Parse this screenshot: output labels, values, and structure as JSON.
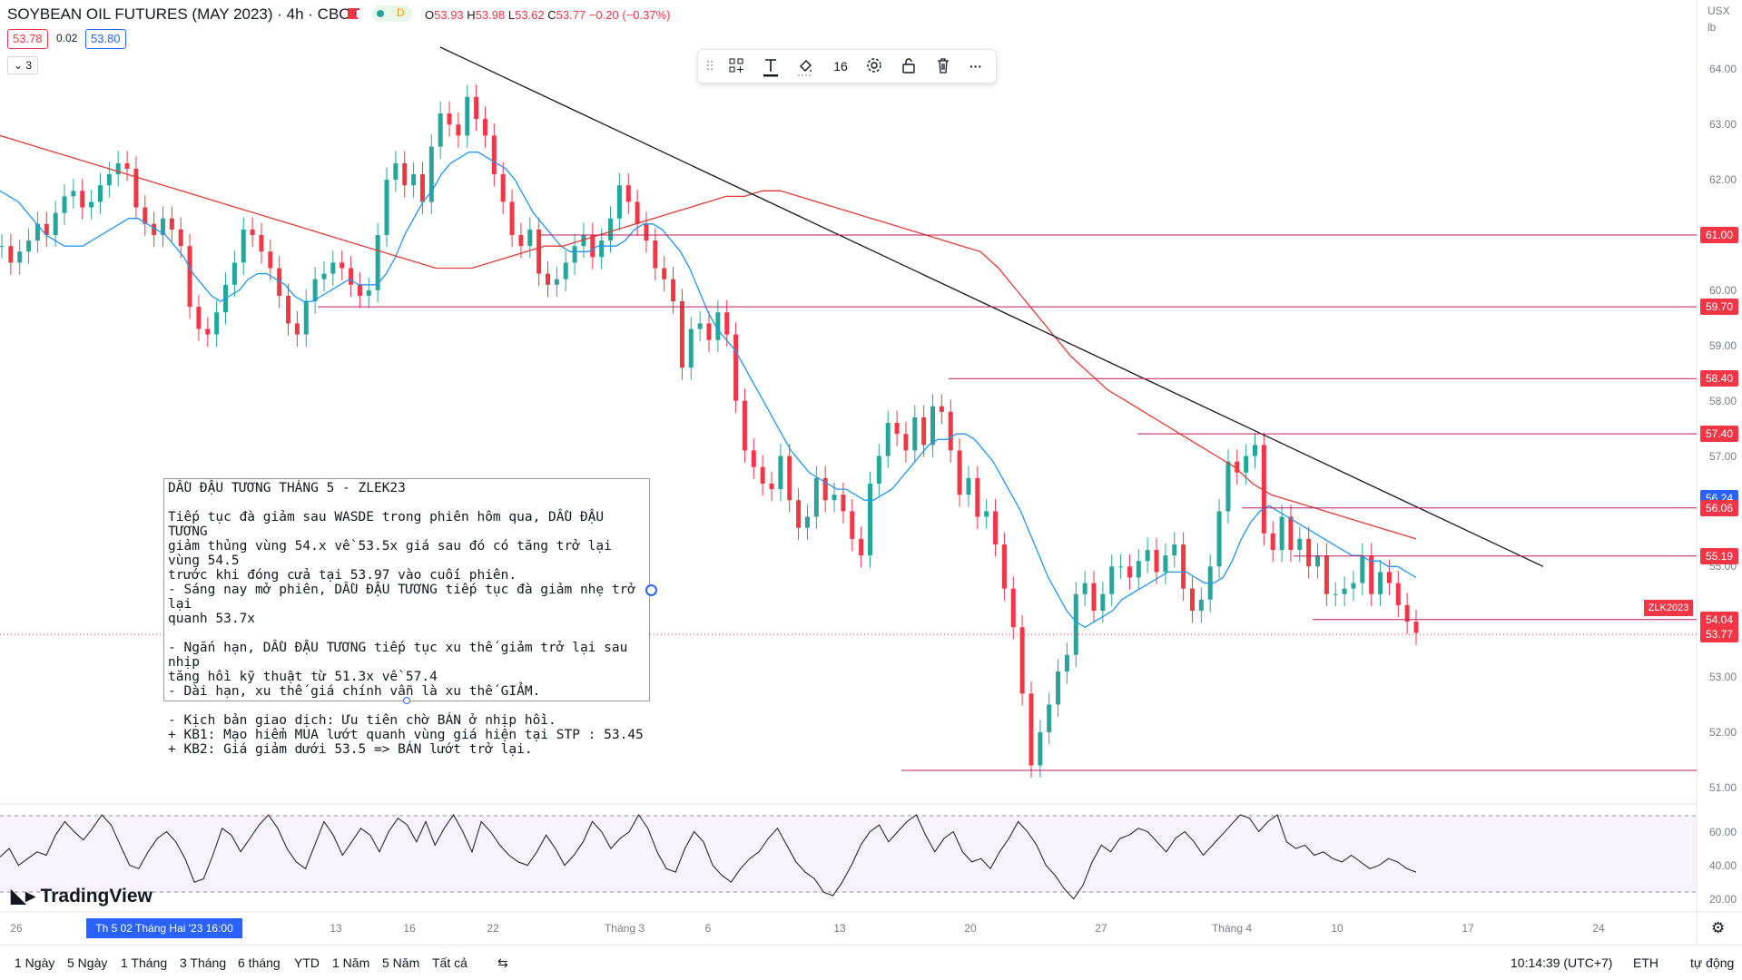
{
  "header": {
    "title": "SOYBEAN OIL FUTURES (MAY 2023) · 4h · CBOT",
    "market_status_badge": "D",
    "ohlc": [
      {
        "key": "O",
        "value": "53.93"
      },
      {
        "key": "H",
        "value": "53.98"
      },
      {
        "key": "L",
        "value": "53.62"
      },
      {
        "key": "C",
        "value": "53.77"
      },
      {
        "key": "",
        "value": "−0.20 (−0.37%)"
      }
    ],
    "sell_price": "53.78",
    "spread": "0.02",
    "buy_price": "53.80",
    "indicators_count": "3"
  },
  "toolbar": {
    "font_size": "16",
    "icons": [
      "drag-handle-icon",
      "templates-icon",
      "text-color-icon",
      "fill-color-icon",
      "settings-icon",
      "lock-icon",
      "trash-icon",
      "more-icon"
    ]
  },
  "price_axis": {
    "currency": "USX",
    "unit": "lb",
    "ticks": [
      "64.00",
      "63.00",
      "62.00",
      "61.00",
      "60.00",
      "59.00",
      "58.00",
      "57.00",
      "56.00",
      "55.00",
      "54.00",
      "53.00",
      "52.00",
      "51.00"
    ],
    "level_tags": [
      {
        "value": "61.00",
        "color": "#f23645"
      },
      {
        "value": "59.70",
        "color": "#f23645"
      },
      {
        "value": "58.40",
        "color": "#f23645"
      },
      {
        "value": "57.40",
        "color": "#f23645"
      },
      {
        "value": "56.24",
        "color": "#2962ff"
      },
      {
        "value": "56.06",
        "color": "#f23645"
      },
      {
        "value": "55.19",
        "color": "#f23645"
      },
      {
        "value": "54.04",
        "color": "#f23645"
      },
      {
        "value": "53.77",
        "color": "#f23645"
      }
    ],
    "symbol_tag": "ZLK2023"
  },
  "rsi_axis": {
    "ticks": [
      "60.00",
      "40.00",
      "20.00"
    ]
  },
  "note": {
    "lines": [
      "DẦU ĐẬU TƯƠNG THÁNG 5 - ZLEK23",
      "",
      "Tiếp tục đà giảm sau WASDE trong phiên hôm qua, DẦU ĐẬU TƯƠNG",
      "giảm thủng vùng 54.x về 53.5x giá sau đó có tăng trở lại vùng 54.5",
      "trước khi đóng cửa tại 53.97 vào cuối phiên.",
      "- Sáng nay mở phiên, DẦU ĐẬU TƯƠNG tiếp tục đà giảm nhẹ trở lại",
      "quanh 53.7x",
      "",
      "- Ngắn hạn, DẦU ĐẬU TƯƠNG tiếp tục xu thế giảm trở lại sau nhịp",
      "tăng hồi kỹ thuật từ 51.3x về 57.4",
      "- Dài hạn, xu thế giá chính vẫn là xu thế GIẢM.",
      "",
      "- Kịch bản giao dịch: Ưu tiên chờ BÁN ở nhịp hồi.",
      "+ KB1: Mạo hiểm MUA lướt quanh vùng giá hiện tại STP : 53.45",
      "+ KB2: Giá giảm dưới 53.5 => BÁN lướt trở lại."
    ]
  },
  "time_axis": {
    "labels": [
      "26",
      "13",
      "16",
      "22",
      "Tháng 3",
      "6",
      "13",
      "20",
      "27",
      "Tháng 4",
      "10",
      "17",
      "24"
    ],
    "highlight": "Th 5 02 Tháng Hai '23   16:00"
  },
  "brand": "TradingView",
  "bottom_bar": {
    "ranges": [
      "1 Ngày",
      "5 Ngày",
      "1 Tháng",
      "3 Tháng",
      "6 tháng",
      "YTD",
      "1 Năm",
      "5 Năm",
      "Tất cả"
    ],
    "clock": "10:14:39 (UTC+7)",
    "session": "ETH",
    "scale_mode": "tự động"
  },
  "chart_data": {
    "type": "candlestick",
    "title": "SOYBEAN OIL FUTURES (MAY 2023) · 4h · CBOT",
    "ylim": [
      50.8,
      64.4
    ],
    "closes": [
      60.8,
      60.5,
      60.7,
      60.9,
      61.2,
      61.0,
      61.4,
      61.7,
      61.8,
      61.5,
      61.6,
      61.9,
      62.1,
      62.3,
      62.2,
      61.5,
      61.2,
      61.0,
      61.3,
      61.1,
      60.8,
      59.7,
      59.3,
      59.2,
      59.6,
      60.1,
      60.5,
      61.1,
      61.0,
      60.7,
      60.4,
      59.9,
      59.4,
      59.2,
      59.8,
      60.2,
      60.3,
      60.5,
      60.4,
      60.1,
      59.9,
      60.0,
      61.0,
      62.0,
      62.3,
      61.9,
      62.1,
      61.6,
      62.6,
      63.2,
      63.0,
      62.8,
      63.5,
      63.1,
      62.8,
      62.1,
      61.6,
      61.0,
      60.8,
      61.1,
      60.3,
      60.1,
      60.2,
      60.5,
      60.8,
      61.0,
      60.6,
      60.9,
      61.3,
      61.9,
      61.6,
      61.2,
      60.9,
      60.4,
      60.2,
      59.8,
      58.6,
      59.3,
      59.4,
      59.1,
      59.6,
      59.2,
      58.0,
      57.1,
      56.8,
      56.5,
      56.4,
      57.0,
      56.2,
      55.7,
      55.9,
      56.6,
      56.2,
      56.3,
      56.0,
      55.5,
      55.2,
      56.5,
      57.0,
      57.6,
      57.4,
      57.1,
      57.7,
      57.2,
      57.9,
      57.8,
      57.1,
      56.3,
      56.6,
      55.9,
      56.0,
      55.4,
      54.6,
      53.9,
      52.7,
      51.4,
      52.0,
      52.5,
      53.1,
      53.4,
      54.5,
      54.7,
      54.2,
      54.5,
      55.0,
      55.0,
      54.8,
      55.1,
      55.3,
      54.9,
      55.2,
      55.4,
      54.6,
      54.2,
      54.4,
      55.0,
      56.0,
      56.9,
      56.7,
      57.0,
      57.2,
      55.6,
      55.3,
      55.9,
      55.3,
      55.5,
      55.0,
      55.2,
      54.5,
      54.5,
      54.6,
      54.7,
      55.2,
      54.5,
      54.9,
      54.7,
      54.3,
      54.0,
      53.8
    ],
    "ema_fast": [
      61.8,
      61.7,
      61.6,
      61.4,
      61.2,
      61.0,
      60.9,
      60.8,
      60.8,
      60.8,
      60.9,
      61.0,
      61.1,
      61.2,
      61.3,
      61.3,
      61.2,
      61.1,
      61.0,
      60.8,
      60.6,
      60.3,
      60.1,
      59.9,
      59.8,
      59.9,
      60.0,
      60.2,
      60.3,
      60.3,
      60.2,
      60.1,
      59.9,
      59.8,
      59.8,
      59.9,
      60.0,
      60.1,
      60.2,
      60.1,
      60.1,
      60.1,
      60.3,
      60.6,
      61.0,
      61.3,
      61.6,
      61.8,
      62.1,
      62.3,
      62.4,
      62.5,
      62.5,
      62.4,
      62.3,
      62.2,
      62.0,
      61.7,
      61.4,
      61.2,
      61.0,
      60.8,
      60.7,
      60.7,
      60.7,
      60.8,
      60.8,
      60.8,
      60.9,
      61.1,
      61.2,
      61.2,
      61.1,
      60.9,
      60.7,
      60.4,
      60.0,
      59.6,
      59.3,
      59.1,
      58.9,
      58.6,
      58.3,
      58.0,
      57.7,
      57.4,
      57.1,
      56.9,
      56.7,
      56.6,
      56.5,
      56.4,
      56.4,
      56.3,
      56.2,
      56.2,
      56.3,
      56.4,
      56.6,
      56.8,
      57.0,
      57.2,
      57.3,
      57.3,
      57.4,
      57.4,
      57.3,
      57.1,
      56.9,
      56.6,
      56.3,
      56.0,
      55.6,
      55.2,
      54.8,
      54.5,
      54.2,
      54.0,
      53.9,
      54.0,
      54.1,
      54.2,
      54.4,
      54.5,
      54.6,
      54.7,
      54.8,
      54.9,
      54.9,
      54.9,
      54.8,
      54.7,
      54.7,
      54.8,
      55.1,
      55.5,
      55.8,
      56.0,
      56.1,
      56.0,
      55.9,
      55.8,
      55.7,
      55.6,
      55.5,
      55.4,
      55.3,
      55.2,
      55.2,
      55.1,
      55.1,
      55.0,
      55.0,
      54.9,
      54.8
    ],
    "ema_slow": [
      62.8,
      62.7,
      62.6,
      62.5,
      62.4,
      62.3,
      62.2,
      62.1,
      62.0,
      61.9,
      61.8,
      61.7,
      61.6,
      61.5,
      61.4,
      61.3,
      61.2,
      61.1,
      61.0,
      60.9,
      60.8,
      60.7,
      60.6,
      60.5,
      60.4,
      60.4,
      60.4,
      60.5,
      60.6,
      60.7,
      60.8,
      60.8,
      60.9,
      61.0,
      61.1,
      61.2,
      61.3,
      61.4,
      61.5,
      61.6,
      61.7,
      61.7,
      61.8,
      61.8,
      61.7,
      61.6,
      61.5,
      61.4,
      61.3,
      61.2,
      61.1,
      61.0,
      60.9,
      60.8,
      60.7,
      60.4,
      60.0,
      59.6,
      59.2,
      58.8,
      58.5,
      58.2,
      58.0,
      57.8,
      57.6,
      57.4,
      57.2,
      57.0,
      56.8,
      56.5,
      56.3,
      56.2,
      56.1,
      56.0,
      55.9,
      55.8,
      55.7,
      55.6,
      55.5
    ],
    "trendline": [
      {
        "x": 0,
        "y": 64.4
      },
      {
        "x": 1,
        "y": 55.0
      }
    ],
    "horizontal_levels": [
      61.0,
      59.7,
      58.4,
      57.4,
      56.06,
      55.19,
      54.04,
      51.31
    ],
    "rsi": [
      45,
      50,
      40,
      44,
      48,
      46,
      58,
      66,
      60,
      55,
      62,
      70,
      64,
      52,
      40,
      38,
      48,
      56,
      60,
      54,
      44,
      30,
      32,
      46,
      62,
      58,
      48,
      56,
      64,
      70,
      62,
      50,
      42,
      38,
      52,
      66,
      58,
      46,
      54,
      62,
      58,
      48,
      60,
      68,
      64,
      54,
      66,
      52,
      62,
      70,
      60,
      48,
      66,
      60,
      52,
      46,
      42,
      40,
      48,
      58,
      50,
      40,
      46,
      54,
      66,
      60,
      50,
      56,
      60,
      70,
      62,
      48,
      38,
      36,
      50,
      60,
      54,
      40,
      34,
      30,
      38,
      44,
      48,
      56,
      62,
      52,
      42,
      36,
      32,
      24,
      22,
      30,
      40,
      52,
      60,
      64,
      54,
      60,
      66,
      70,
      58,
      48,
      56,
      60,
      48,
      42,
      44,
      38,
      48,
      56,
      66,
      60,
      52,
      40,
      34,
      26,
      20,
      28,
      42,
      52,
      48,
      56,
      58,
      62,
      60,
      54,
      48,
      56,
      60,
      54,
      46,
      52,
      58,
      64,
      70,
      68,
      60,
      66,
      70,
      54,
      50,
      52,
      46,
      48,
      44,
      42,
      46,
      42,
      38,
      40,
      44,
      42,
      38,
      36
    ]
  }
}
